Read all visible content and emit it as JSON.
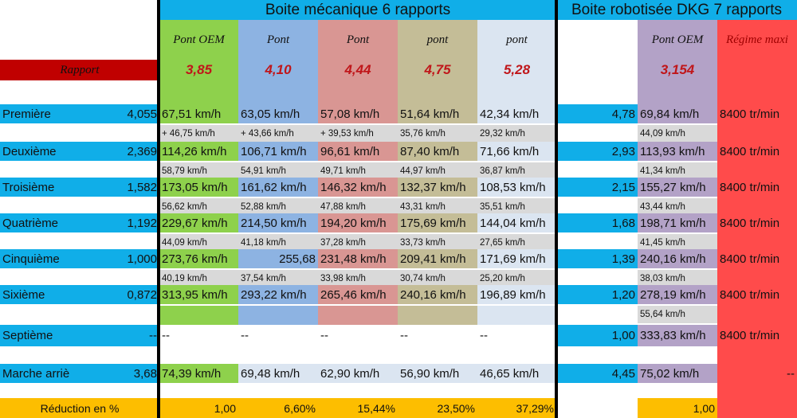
{
  "headers": {
    "manual_title": "Boite mécanique 6 rapports",
    "dkg_title": "Boite robotisée DKG 7 rapports",
    "manual_cols": [
      "Pont OEM",
      "Pont",
      "Pont",
      "pont",
      "pont"
    ],
    "dkg_col": "Pont OEM",
    "regime_col": "Régime maxi"
  },
  "rapport_row": {
    "label": "Rapport",
    "manual": [
      "3,85",
      "4,10",
      "4,44",
      "4,75",
      "5,28"
    ],
    "dkg": "3,154"
  },
  "gears": [
    {
      "name": "Première",
      "ratio": "4,055",
      "speeds": [
        "67,51 km/h",
        "63,05 km/h",
        "57,08 km/h",
        "51,64 km/h",
        "42,34 km/h"
      ],
      "deltas": [
        "+ 46,75 km/h",
        "+ 43,66 km/h",
        "+ 39,53 km/h",
        "35,76 km/h",
        "29,32 km/h"
      ],
      "dkg_ratio": "4,78",
      "dkg_speed": "69,84 km/h",
      "dkg_delta": "44,09 km/h",
      "regime": "8400 tr/min"
    },
    {
      "name": "Deuxième",
      "ratio": "2,369",
      "speeds": [
        "114,26 km/h",
        "106,71 km/h",
        "96,61 km/h",
        "87,40 km/h",
        "71,66 km/h"
      ],
      "deltas": [
        "58,79 km/h",
        "54,91 km/h",
        "49,71 km/h",
        "44,97 km/h",
        "36,87 km/h"
      ],
      "dkg_ratio": "2,93",
      "dkg_speed": "113,93 km/h",
      "dkg_delta": "41,34 km/h",
      "regime": "8400 tr/min"
    },
    {
      "name": "Troisième",
      "ratio": "1,582",
      "speeds": [
        "173,05 km/h",
        "161,62 km/h",
        "146,32 km/h",
        "132,37 km/h",
        "108,53 km/h"
      ],
      "deltas": [
        "56,62 km/h",
        "52,88 km/h",
        "47,88 km/h",
        "43,31 km/h",
        "35,51 km/h"
      ],
      "dkg_ratio": "2,15",
      "dkg_speed": "155,27 km/h",
      "dkg_delta": "43,44 km/h",
      "regime": "8400 tr/min"
    },
    {
      "name": "Quatrième",
      "ratio": "1,192",
      "speeds": [
        "229,67 km/h",
        "214,50 km/h",
        "194,20 km/h",
        "175,69 km/h",
        "144,04 km/h"
      ],
      "deltas": [
        "44,09 km/h",
        "41,18 km/h",
        "37,28 km/h",
        "33,73 km/h",
        "27,65 km/h"
      ],
      "dkg_ratio": "1,68",
      "dkg_speed": "198,71 km/h",
      "dkg_delta": "41,45 km/h",
      "regime": "8400 tr/min"
    },
    {
      "name": "Cinquième",
      "ratio": "1,000",
      "speeds": [
        "273,76 km/h",
        "255,68",
        "231,48 km/h",
        "209,41 km/h",
        "171,69 km/h"
      ],
      "deltas": [
        "40,19 km/h",
        "37,54 km/h",
        "33,98 km/h",
        "30,74 km/h",
        "25,20 km/h"
      ],
      "dkg_ratio": "1,39",
      "dkg_speed": "240,16 km/h",
      "dkg_delta": "38,03 km/h",
      "regime": "8400 tr/min"
    },
    {
      "name": "Sixième",
      "ratio": "0,872",
      "speeds": [
        "313,95 km/h",
        "293,22 km/h",
        "265,46 km/h",
        "240,16 km/h",
        "196,89 km/h"
      ],
      "deltas": [
        "",
        "",
        "",
        "",
        ""
      ],
      "dkg_ratio": "1,20",
      "dkg_speed": "278,19 km/h",
      "dkg_delta": "55,64 km/h",
      "regime": "8400 tr/min"
    },
    {
      "name": "Septième",
      "ratio": "--",
      "speeds": [
        "--",
        "--",
        "--",
        "--",
        "--"
      ],
      "deltas": [
        "",
        "",
        "",
        "",
        ""
      ],
      "dkg_ratio": "1,00",
      "dkg_speed": "333,83 km/h",
      "dkg_delta": "",
      "regime": "8400 tr/min"
    }
  ],
  "reverse": {
    "name": "Marche arriè",
    "ratio": "3,68",
    "speeds": [
      "74,39 km/h",
      "69,48 km/h",
      "62,90 km/h",
      "56,90 km/h",
      "46,65 km/h"
    ],
    "dkg_ratio": "4,45",
    "dkg_speed": "75,02 km/h",
    "regime": "--"
  },
  "reduction": {
    "label": "Réduction en %",
    "manual": [
      "1,00",
      "6,60%",
      "15,44%",
      "23,50%",
      "37,29%"
    ],
    "dkg": "1,00"
  },
  "colors": {
    "blue": "#10aee8",
    "red_label": "#c00000",
    "regime": "#ff4b4b",
    "yellow": "#fdbe00",
    "manual_cols": [
      "#8ed14c",
      "#8db3e2",
      "#d99693",
      "#c4bd97",
      "#dbe5f1"
    ],
    "dkg_col": "#b3a2c7",
    "delta_gray": "#d9d9d9",
    "delta_white": "#ffffff"
  }
}
